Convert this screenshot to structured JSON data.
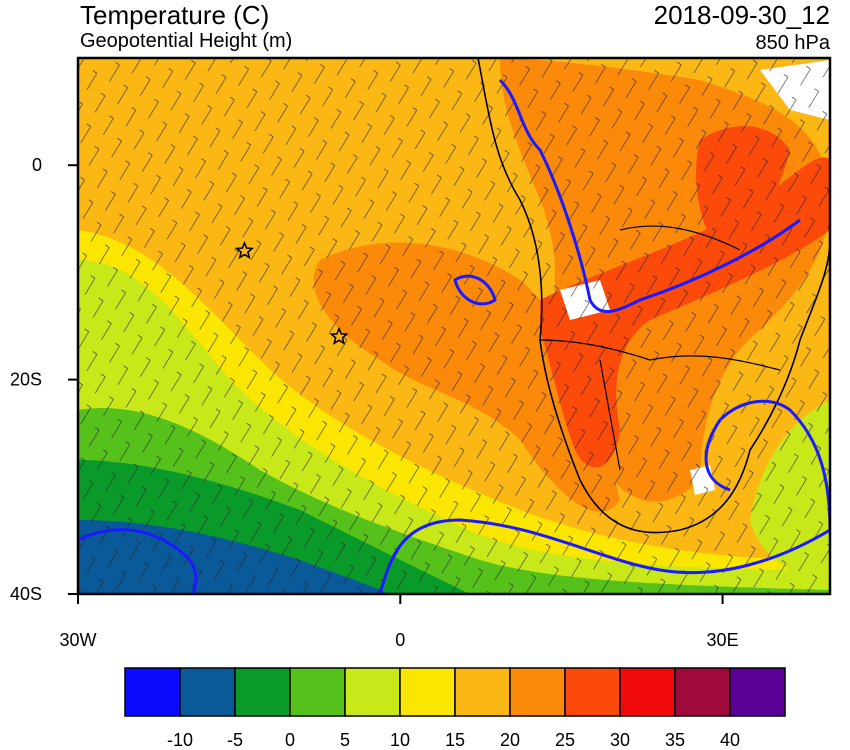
{
  "header": {
    "title": "Temperature (C)",
    "subtitle": "Geopotential Height (m)",
    "valid_time": "2018-09-30_12",
    "level": "850 hPa"
  },
  "map": {
    "lon_range": [
      -30,
      40
    ],
    "lat_range": [
      -40,
      10
    ],
    "x_ticks": [
      {
        "value": -30,
        "label": "30W"
      },
      {
        "value": 0,
        "label": "0"
      },
      {
        "value": 30,
        "label": "30E"
      }
    ],
    "y_ticks": [
      {
        "value": 0,
        "label": "0"
      },
      {
        "value": -20,
        "label": "20S"
      },
      {
        "value": -40,
        "label": "40S"
      }
    ],
    "markers": [
      {
        "name": "star",
        "lon": -14.5,
        "lat": -8.0
      },
      {
        "name": "star",
        "lon": -5.7,
        "lat": -16.0
      }
    ]
  },
  "colorbar": {
    "colors": [
      "#0a0aff",
      "#0a5a9a",
      "#0a9a2a",
      "#55c11a",
      "#c8e81a",
      "#fae600",
      "#fbb714",
      "#fb8a0a",
      "#fb4a0a",
      "#f00a0a",
      "#a0093c",
      "#5a0096"
    ],
    "labels": [
      "-10",
      "-5",
      "0",
      "5",
      "10",
      "15",
      "20",
      "25",
      "30",
      "35",
      "40"
    ]
  }
}
